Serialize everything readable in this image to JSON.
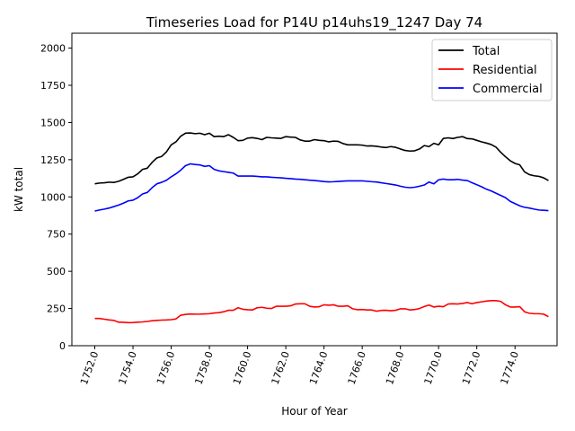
{
  "chart_data": {
    "type": "line",
    "title": "Timeseries Load for P14U p14uhs19_1247  Day 74",
    "xlabel": "Hour of Year",
    "ylabel": "kW total",
    "xlim": [
      1750.8,
      1776.2
    ],
    "ylim": [
      0,
      2100
    ],
    "xticks": [
      1752,
      1754,
      1756,
      1758,
      1760,
      1762,
      1764,
      1766,
      1768,
      1770,
      1772,
      1774
    ],
    "xtick_labels": [
      "1752.0",
      "1754.0",
      "1756.0",
      "1758.0",
      "1760.0",
      "1762.0",
      "1764.0",
      "1766.0",
      "1768.0",
      "1770.0",
      "1772.0",
      "1774.0"
    ],
    "yticks": [
      0,
      250,
      500,
      750,
      1000,
      1250,
      1500,
      1750,
      2000
    ],
    "ytick_labels": [
      "0",
      "250",
      "500",
      "750",
      "1000",
      "1250",
      "1500",
      "1750",
      "2000"
    ],
    "legend_position": "top-right",
    "x": [
      1752.0,
      1752.25,
      1752.5,
      1752.75,
      1753.0,
      1753.25,
      1753.5,
      1753.75,
      1754.0,
      1754.25,
      1754.5,
      1754.75,
      1755.0,
      1755.25,
      1755.5,
      1755.75,
      1756.0,
      1756.25,
      1756.5,
      1756.75,
      1757.0,
      1757.25,
      1757.5,
      1757.75,
      1758.0,
      1758.25,
      1758.5,
      1758.75,
      1759.0,
      1759.25,
      1759.5,
      1759.75,
      1760.0,
      1760.25,
      1760.5,
      1760.75,
      1761.0,
      1761.25,
      1761.5,
      1761.75,
      1762.0,
      1762.25,
      1762.5,
      1762.75,
      1763.0,
      1763.25,
      1763.5,
      1763.75,
      1764.0,
      1764.25,
      1764.5,
      1764.75,
      1765.0,
      1765.25,
      1765.5,
      1765.75,
      1766.0,
      1766.25,
      1766.5,
      1766.75,
      1767.0,
      1767.25,
      1767.5,
      1767.75,
      1768.0,
      1768.25,
      1768.5,
      1768.75,
      1769.0,
      1769.25,
      1769.5,
      1769.75,
      1770.0,
      1770.25,
      1770.5,
      1770.75,
      1771.0,
      1771.25,
      1771.5,
      1771.75,
      1772.0,
      1772.25,
      1772.5,
      1772.75,
      1773.0,
      1773.25,
      1773.5,
      1773.75,
      1774.0,
      1774.25,
      1774.5,
      1774.75,
      1775.0,
      1775.25,
      1775.5,
      1775.75
    ],
    "series": [
      {
        "name": "Total",
        "color": "#000000",
        "values": [
          1088,
          1093,
          1095,
          1099,
          1097,
          1105,
          1118,
          1132,
          1135,
          1155,
          1185,
          1193,
          1232,
          1262,
          1272,
          1302,
          1350,
          1370,
          1408,
          1428,
          1430,
          1425,
          1428,
          1418,
          1428,
          1405,
          1408,
          1405,
          1418,
          1400,
          1378,
          1380,
          1395,
          1398,
          1393,
          1385,
          1400,
          1397,
          1395,
          1393,
          1405,
          1402,
          1400,
          1383,
          1375,
          1375,
          1385,
          1380,
          1378,
          1370,
          1375,
          1373,
          1358,
          1350,
          1350,
          1350,
          1348,
          1342,
          1343,
          1340,
          1335,
          1332,
          1338,
          1333,
          1322,
          1312,
          1308,
          1310,
          1322,
          1345,
          1338,
          1360,
          1350,
          1393,
          1397,
          1392,
          1400,
          1405,
          1392,
          1390,
          1380,
          1370,
          1362,
          1352,
          1335,
          1300,
          1270,
          1243,
          1225,
          1215,
          1168,
          1150,
          1142,
          1138,
          1128,
          1110
        ]
      },
      {
        "name": "Residential",
        "color": "#ff0000",
        "values": [
          183,
          183,
          178,
          173,
          170,
          158,
          157,
          155,
          156,
          158,
          160,
          163,
          168,
          170,
          172,
          173,
          175,
          180,
          205,
          210,
          213,
          212,
          212,
          214,
          215,
          220,
          222,
          228,
          238,
          238,
          255,
          245,
          242,
          240,
          255,
          258,
          252,
          250,
          265,
          265,
          265,
          268,
          280,
          282,
          282,
          265,
          260,
          262,
          275,
          272,
          275,
          265,
          265,
          268,
          248,
          242,
          243,
          240,
          240,
          232,
          237,
          238,
          235,
          238,
          248,
          248,
          240,
          243,
          250,
          263,
          273,
          260,
          265,
          262,
          280,
          282,
          280,
          284,
          290,
          282,
          290,
          295,
          300,
          303,
          303,
          298,
          275,
          260,
          260,
          262,
          228,
          218,
          215,
          215,
          212,
          195
        ]
      },
      {
        "name": "Commercial",
        "color": "#0000ff",
        "values": [
          905,
          912,
          918,
          925,
          935,
          945,
          958,
          973,
          978,
          995,
          1020,
          1030,
          1062,
          1088,
          1098,
          1112,
          1135,
          1155,
          1180,
          1210,
          1222,
          1218,
          1215,
          1205,
          1210,
          1185,
          1175,
          1170,
          1165,
          1160,
          1140,
          1140,
          1140,
          1140,
          1138,
          1135,
          1135,
          1132,
          1130,
          1128,
          1125,
          1123,
          1120,
          1118,
          1115,
          1112,
          1110,
          1107,
          1103,
          1101,
          1102,
          1104,
          1106,
          1108,
          1108,
          1108,
          1108,
          1105,
          1102,
          1100,
          1095,
          1090,
          1085,
          1080,
          1072,
          1065,
          1062,
          1065,
          1072,
          1080,
          1100,
          1088,
          1115,
          1120,
          1115,
          1115,
          1118,
          1113,
          1110,
          1095,
          1082,
          1068,
          1052,
          1040,
          1025,
          1010,
          995,
          970,
          955,
          940,
          930,
          925,
          918,
          912,
          910,
          908
        ]
      }
    ]
  }
}
